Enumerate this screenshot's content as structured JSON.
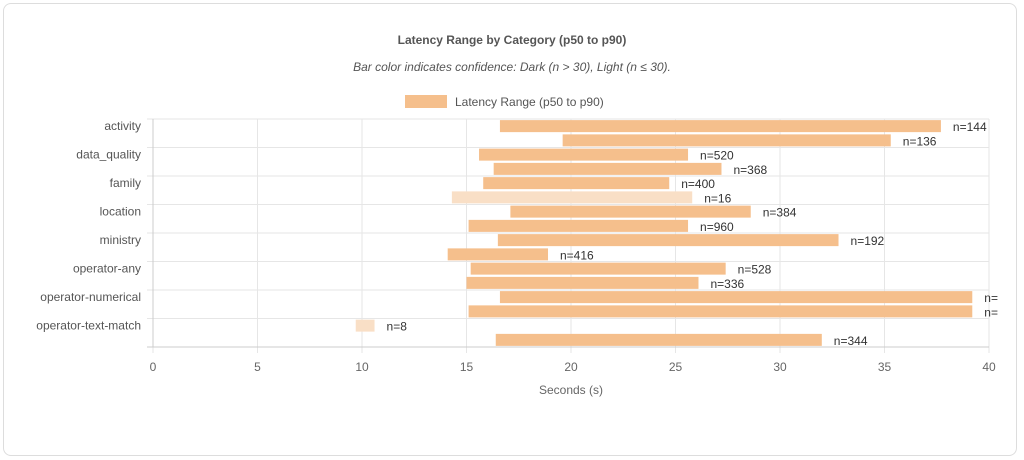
{
  "chart_data": {
    "type": "bar",
    "orientation": "horizontal-floating",
    "title": "Latency Range by Category (p50 to p90)",
    "subtitle": "Bar color indicates confidence: Dark (n > 30), Light (n ≤ 30).",
    "legend": {
      "position": "top",
      "entries": [
        "Latency Range (p50 to p90)"
      ]
    },
    "xlabel": "Seconds (s)",
    "ylabel": "",
    "xlim": [
      0,
      40
    ],
    "xticks": [
      "0",
      "5",
      "10",
      "15",
      "20",
      "25",
      "30",
      "35",
      "40"
    ],
    "grid": true,
    "colors": {
      "dark": "#f5bf8c",
      "light": "#f9dfc6"
    },
    "y_tick_labels": [
      "activity",
      "data_quality",
      "family",
      "location",
      "ministry",
      "operator-any",
      "operator-numerical",
      "operator-text-match"
    ],
    "rows": [
      {
        "p50": 16.6,
        "p90": 37.7,
        "label": "n=144",
        "confidence": "dark"
      },
      {
        "p50": 19.6,
        "p90": 35.3,
        "label": "n=136",
        "confidence": "dark"
      },
      {
        "p50": 15.6,
        "p90": 25.6,
        "label": "n=520",
        "confidence": "dark"
      },
      {
        "p50": 16.3,
        "p90": 27.2,
        "label": "n=368",
        "confidence": "dark"
      },
      {
        "p50": 15.8,
        "p90": 24.7,
        "label": "n=400",
        "confidence": "dark"
      },
      {
        "p50": 14.3,
        "p90": 25.8,
        "label": "n=16",
        "confidence": "light"
      },
      {
        "p50": 17.1,
        "p90": 28.6,
        "label": "n=384",
        "confidence": "dark"
      },
      {
        "p50": 15.1,
        "p90": 25.6,
        "label": "n=960",
        "confidence": "dark"
      },
      {
        "p50": 16.5,
        "p90": 32.8,
        "label": "n=192",
        "confidence": "dark"
      },
      {
        "p50": 14.1,
        "p90": 18.9,
        "label": "n=416",
        "confidence": "dark"
      },
      {
        "p50": 15.2,
        "p90": 27.4,
        "label": "n=528",
        "confidence": "dark"
      },
      {
        "p50": 15.0,
        "p90": 26.1,
        "label": "n=336",
        "confidence": "dark"
      },
      {
        "p50": 16.6,
        "p90": 39.2,
        "label": "n=",
        "confidence": "dark"
      },
      {
        "p50": 15.1,
        "p90": 39.2,
        "label": "n=",
        "confidence": "dark"
      },
      {
        "p50": 9.7,
        "p90": 10.6,
        "label": "n=8",
        "confidence": "light"
      },
      {
        "p50": 16.4,
        "p90": 32.0,
        "label": "n=344",
        "confidence": "dark"
      }
    ]
  }
}
